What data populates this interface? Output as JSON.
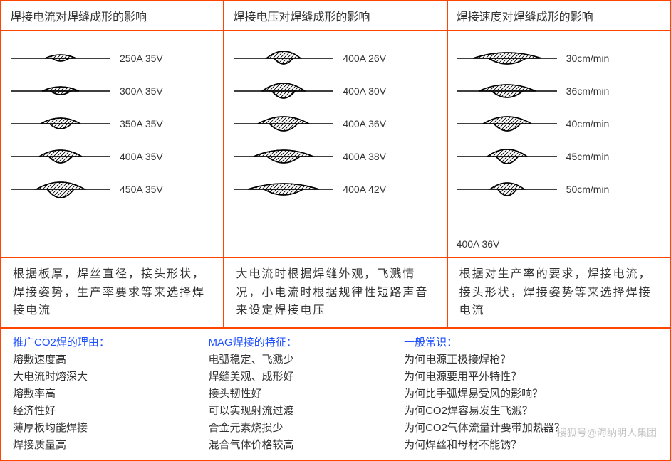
{
  "headers": [
    "焊接电流对焊缝成形的影响",
    "焊接电压对焊缝成形的影响",
    "焊接速度对焊缝成形的影响"
  ],
  "col1_beads": [
    {
      "label": "250A   35V",
      "w": 22,
      "h": 5,
      "d": 4
    },
    {
      "label": "300A   35V",
      "w": 26,
      "h": 6,
      "d": 5
    },
    {
      "label": "350A   35V",
      "w": 28,
      "h": 8,
      "d": 7
    },
    {
      "label": "400A   35V",
      "w": 30,
      "h": 9,
      "d": 9
    },
    {
      "label": "450A   35V",
      "w": 34,
      "h": 10,
      "d": 12
    }
  ],
  "col2_beads": [
    {
      "label": "400A   26V",
      "w": 24,
      "h": 10,
      "d": 8
    },
    {
      "label": "400A   30V",
      "w": 30,
      "h": 11,
      "d": 10
    },
    {
      "label": "400A   36V",
      "w": 36,
      "h": 10,
      "d": 10
    },
    {
      "label": "400A   38V",
      "w": 42,
      "h": 9,
      "d": 9
    },
    {
      "label": "400A   42V",
      "w": 50,
      "h": 8,
      "d": 8
    }
  ],
  "col3_beads": [
    {
      "label": "30cm/min",
      "w": 48,
      "h": 8,
      "d": 8
    },
    {
      "label": "36cm/min",
      "w": 40,
      "h": 9,
      "d": 9
    },
    {
      "label": "40cm/min",
      "w": 34,
      "h": 10,
      "d": 10
    },
    {
      "label": "45cm/min",
      "w": 28,
      "h": 10,
      "d": 10
    },
    {
      "label": "50cm/min",
      "w": 24,
      "h": 9,
      "d": 9
    }
  ],
  "col3_note": "400A   36V",
  "notes": [
    "根据板厚，焊丝直径，接头形状，焊接姿势，生产率要求等来选择焊接电流",
    "大电流时根据焊缝外观，飞溅情况，小电流时根据规律性短路声音来设定焊接电压",
    "根据对生产率的要求，焊接电流，接头形状，焊接姿势等来选择焊接电流"
  ],
  "lists": [
    {
      "hdr": "推广CO2焊的理由：",
      "items": [
        "熔敷速度高",
        "大电流时熔深大",
        "熔敷率高",
        "经济性好",
        "薄厚板均能焊接",
        "焊接质量高"
      ]
    },
    {
      "hdr": "MAG焊接的特征：",
      "items": [
        "电弧稳定、飞溅少",
        "焊缝美观、成形好",
        "接头韧性好",
        "可以实现射流过渡",
        "合金元素烧损少",
        "混合气体价格较高"
      ]
    },
    {
      "hdr": "一般常识：",
      "items": [
        "为何电源正极接焊枪？",
        "为何电源要用平外特性？",
        "为何比手弧焊易受风的影响？",
        "为何CO2焊容易发生飞溅？",
        "为何CO2气体流量计要带加热器？",
        "为何焊丝和母材不能锈？"
      ]
    }
  ],
  "watermark": "搜狐号@海纳明人集团",
  "stroke": "#000000",
  "hatch": "#000000"
}
